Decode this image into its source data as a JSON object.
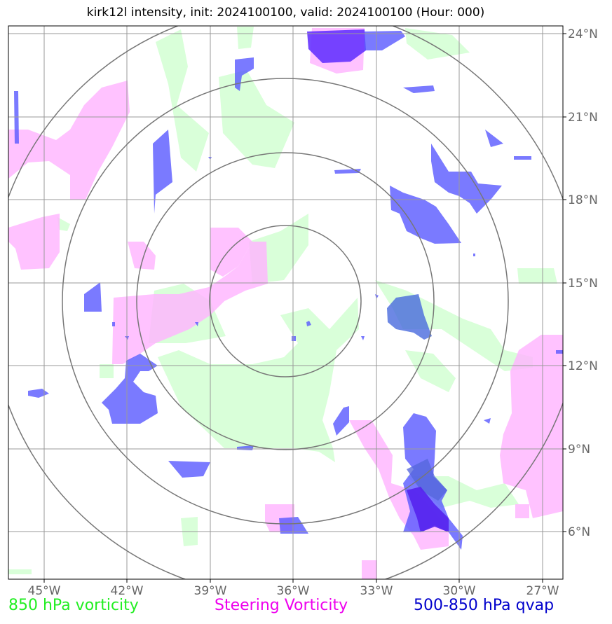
{
  "title": "kirk12l intensity, init: 2024100100, valid: 2024100100 (Hour: 000)",
  "lon_labels": [
    "45°W",
    "42°W",
    "39°W",
    "36°W",
    "33°W",
    "30°W",
    "27°W"
  ],
  "lat_labels": [
    "24°N",
    "21°N",
    "18°N",
    "15°N",
    "12°N",
    "9°N",
    "6°N"
  ],
  "legend": {
    "vort850": "850 hPa vorticity",
    "steering": "Steering Vorticity",
    "qvap": "500-850 hPa qvap"
  },
  "colors": {
    "vort850": "#22ee22",
    "steering": "#ee00ee",
    "qvap": "#0000cc",
    "grid": "#888888",
    "range_rings": "#777777"
  },
  "map": {
    "lon_range": [
      -46.3,
      -26.3
    ],
    "lat_range": [
      4.8,
      24.8
    ],
    "center": {
      "lon": -35.8,
      "lat": 14.3
    }
  }
}
